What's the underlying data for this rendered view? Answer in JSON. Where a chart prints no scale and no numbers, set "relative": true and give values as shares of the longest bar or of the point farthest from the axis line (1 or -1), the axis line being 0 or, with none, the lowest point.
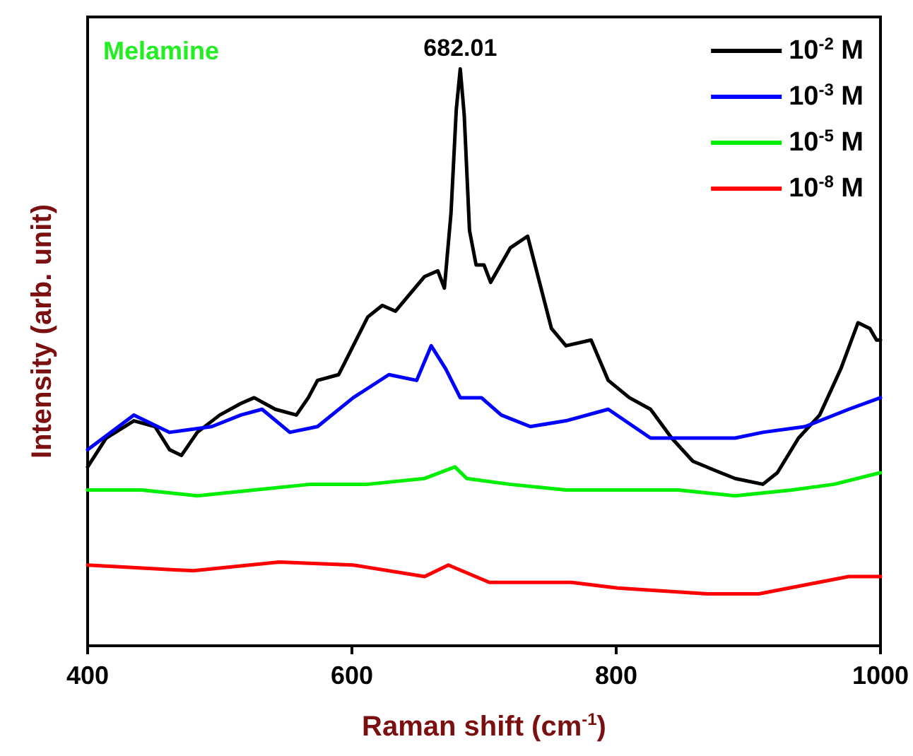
{
  "chart_data": {
    "type": "line",
    "title": "Melamine",
    "xlabel": "Raman shift (cm$^{-1}$)",
    "ylabel": "Intensity (arb. unit)",
    "relative": true,
    "xlim": [
      400,
      1000
    ],
    "xticks": [
      400,
      600,
      800,
      1000
    ],
    "grid": false,
    "legend": "top right",
    "marker": "none",
    "line_style": "solid",
    "annotations": [
      {
        "text": "682.01",
        "x": 682,
        "y": 1.0
      }
    ],
    "series": [
      {
        "name": "10$^{-2}$ M",
        "color": "#000000",
        "x": [
          400,
          414,
          435,
          451,
          462,
          471,
          483,
          500,
          516,
          526,
          542,
          558,
          567,
          574,
          590,
          601,
          612,
          623,
          633,
          644,
          655,
          665,
          670,
          675,
          679,
          682,
          685,
          689,
          694,
          700,
          705,
          720,
          733,
          751,
          762,
          781,
          794,
          810,
          826,
          842,
          858,
          879,
          890,
          911,
          922,
          938,
          954,
          970,
          983,
          992,
          997,
          1000
        ],
        "values": [
          0.31,
          0.36,
          0.39,
          0.38,
          0.34,
          0.33,
          0.37,
          0.4,
          0.42,
          0.43,
          0.41,
          0.4,
          0.43,
          0.46,
          0.47,
          0.52,
          0.57,
          0.59,
          0.58,
          0.61,
          0.64,
          0.65,
          0.62,
          0.75,
          0.93,
          1.0,
          0.92,
          0.72,
          0.66,
          0.66,
          0.63,
          0.69,
          0.71,
          0.55,
          0.52,
          0.53,
          0.46,
          0.43,
          0.41,
          0.36,
          0.32,
          0.3,
          0.29,
          0.28,
          0.3,
          0.36,
          0.4,
          0.48,
          0.56,
          0.55,
          0.53,
          0.53
        ]
      },
      {
        "name": "10$^{-3}$ M",
        "color": "#0000ff",
        "x": [
          400,
          435,
          462,
          494,
          516,
          532,
          553,
          574,
          601,
          628,
          649,
          660,
          671,
          682,
          698,
          713,
          735,
          762,
          794,
          826,
          858,
          890,
          911,
          943,
          976,
          1000
        ],
        "values": [
          0.34,
          0.4,
          0.37,
          0.38,
          0.4,
          0.41,
          0.37,
          0.38,
          0.43,
          0.47,
          0.46,
          0.52,
          0.48,
          0.43,
          0.43,
          0.4,
          0.38,
          0.39,
          0.41,
          0.36,
          0.36,
          0.36,
          0.37,
          0.38,
          0.41,
          0.43
        ]
      },
      {
        "name": "10$^{-5}$ M",
        "color": "#00ee00",
        "x": [
          400,
          441,
          483,
          526,
          569,
          612,
          655,
          678,
          687,
          719,
          762,
          805,
          847,
          890,
          933,
          965,
          1000
        ],
        "values": [
          0.27,
          0.27,
          0.26,
          0.27,
          0.28,
          0.28,
          0.29,
          0.31,
          0.29,
          0.28,
          0.27,
          0.27,
          0.27,
          0.26,
          0.27,
          0.28,
          0.3
        ]
      },
      {
        "name": "10$^{-8}$ M",
        "color": "#ff0000",
        "x": [
          400,
          480,
          545,
          601,
          655,
          673,
          704,
          766,
          801,
          869,
          908,
          976,
          1000
        ],
        "values": [
          0.14,
          0.13,
          0.145,
          0.14,
          0.12,
          0.14,
          0.11,
          0.11,
          0.1,
          0.09,
          0.09,
          0.12,
          0.12
        ]
      }
    ]
  }
}
